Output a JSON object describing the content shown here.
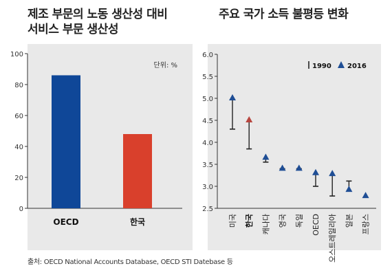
{
  "titles": {
    "left_line1": "제조 부문의 노동 생산성 대비",
    "left_line2": "서비스 부문 생산성",
    "right": "주요 국가 소득 불평등 변화"
  },
  "source": "출처: OECD National Accounts Database, OECD STI Datebase 등",
  "colors": {
    "panel_bg": "#e9e9e9",
    "oecd_bar": "#0f4798",
    "korea_bar": "#d9402c",
    "marker_2016": "#1f4e95",
    "marker_korea": "#b8463f",
    "line_1990": "#222222"
  },
  "chart_data": [
    {
      "type": "bar",
      "unit_label": "단위: %",
      "categories": [
        "OECD",
        "한국"
      ],
      "values": [
        86,
        48
      ],
      "ylim": [
        0,
        100
      ],
      "yticks": [
        0,
        20,
        40,
        60,
        80,
        100
      ],
      "grid": false
    },
    {
      "type": "scatter",
      "legend": {
        "position": "top-right",
        "entries": [
          "1990",
          "2016"
        ]
      },
      "categories": [
        "미국",
        "한국",
        "캐나다",
        "영국",
        "독일",
        "OECD",
        "오스트레일리아",
        "일본",
        "프랑스"
      ],
      "highlight_category": "한국",
      "ylim": [
        2.5,
        6.0
      ],
      "yticks": [
        "2.5",
        "3.0",
        "3.5",
        "4.0",
        "4.5",
        "5.0",
        "5.5",
        "6.0"
      ],
      "series": [
        {
          "name": "1990",
          "values": [
            4.3,
            3.85,
            3.55,
            3.4,
            3.4,
            3.0,
            2.78,
            3.12,
            2.75
          ]
        },
        {
          "name": "2016",
          "values": [
            5.0,
            4.5,
            3.65,
            3.4,
            3.4,
            3.3,
            3.28,
            2.92,
            2.78
          ]
        }
      ],
      "grid": false
    }
  ]
}
